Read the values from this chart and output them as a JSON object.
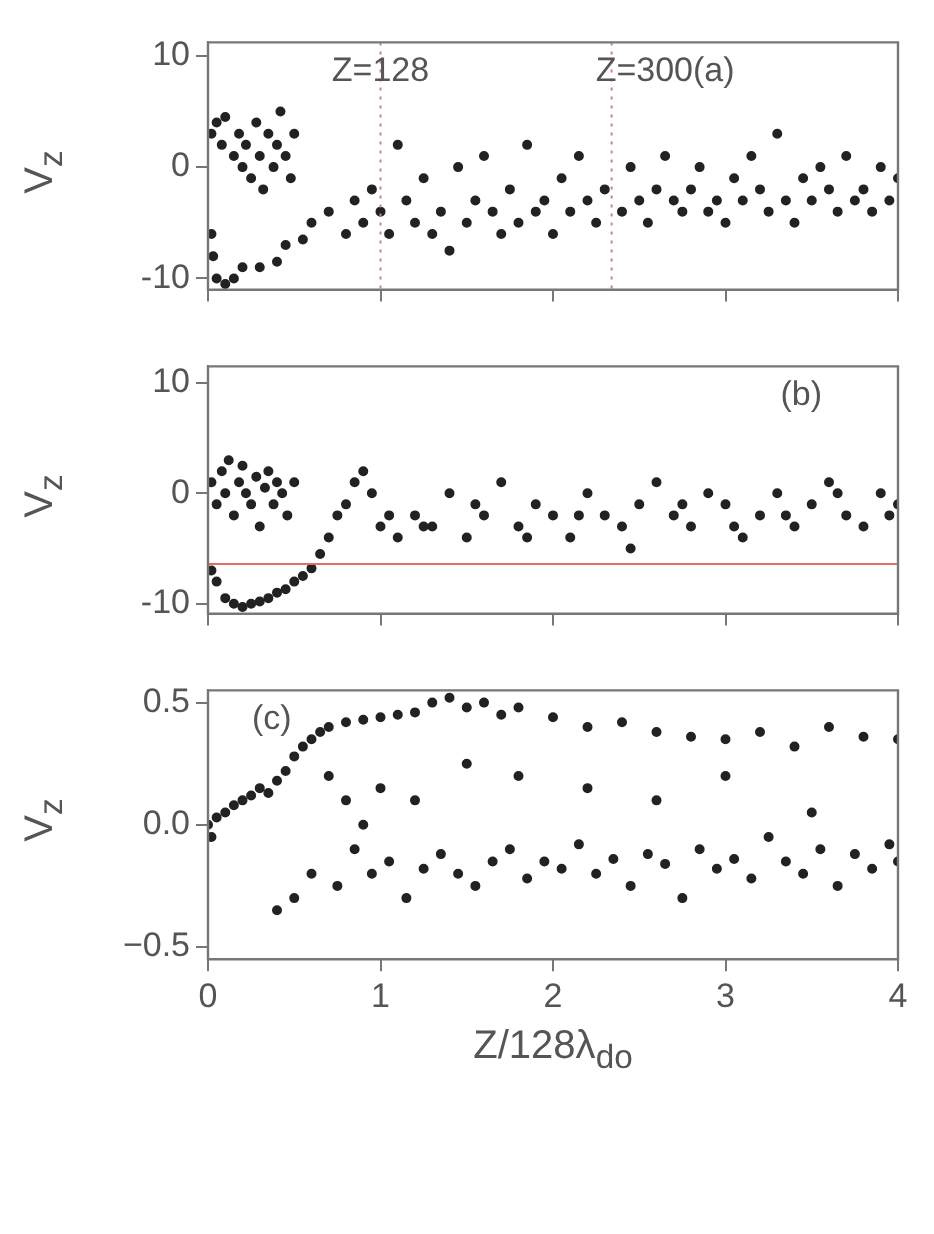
{
  "chart_data": [
    {
      "type": "scatter",
      "ylabel": "V$_{z}$",
      "tick_labels": "y",
      "grid": false,
      "marker": "circle",
      "color": "#222222",
      "xlim": [
        0,
        4
      ],
      "xticks": [
        0,
        1,
        2,
        3,
        4
      ],
      "ylim": [
        -11,
        11.2
      ],
      "yticks": [
        -10,
        0,
        10
      ],
      "annotations": [
        "Z=128",
        "Z=300(a)"
      ],
      "ref_lines": [
        {
          "axis": "x",
          "value": 1,
          "color": "#d08080",
          "line_style": "dotted"
        },
        {
          "axis": "x",
          "value": 2.34,
          "color": "#d08080",
          "line_style": "dotted"
        }
      ],
      "x": [
        0.02,
        0.05,
        0.08,
        0.1,
        0.15,
        0.18,
        0.2,
        0.22,
        0.25,
        0.28,
        0.3,
        0.32,
        0.35,
        0.38,
        0.4,
        0.42,
        0.45,
        0.48,
        0.5,
        0.02,
        0.03,
        0.05,
        0.1,
        0.15,
        0.2,
        0.3,
        0.4,
        0.45,
        0.55,
        0.6,
        0.7,
        0.8,
        0.85,
        0.9,
        0.95,
        1.0,
        1.05,
        1.1,
        1.15,
        1.2,
        1.25,
        1.3,
        1.35,
        1.4,
        1.45,
        1.5,
        1.55,
        1.6,
        1.65,
        1.7,
        1.75,
        1.8,
        1.85,
        1.9,
        1.95,
        2.0,
        2.05,
        2.1,
        2.15,
        2.2,
        2.25,
        2.3,
        2.4,
        2.45,
        2.5,
        2.55,
        2.6,
        2.65,
        2.7,
        2.75,
        2.8,
        2.85,
        2.9,
        2.95,
        3.0,
        3.05,
        3.1,
        3.15,
        3.2,
        3.25,
        3.3,
        3.35,
        3.4,
        3.45,
        3.5,
        3.55,
        3.6,
        3.65,
        3.7,
        3.75,
        3.8,
        3.85,
        3.9,
        3.95,
        4.0
      ],
      "values": [
        3,
        4,
        2,
        4.5,
        1,
        3,
        0,
        2,
        -1,
        4,
        1,
        -2,
        3,
        0,
        2,
        5,
        1,
        -1,
        3,
        -6,
        -8,
        -10,
        -10.5,
        -10,
        -9,
        -9,
        -8.5,
        -7,
        -6.5,
        -5,
        -4,
        -6,
        -3,
        -5,
        -2,
        -4,
        -6,
        2,
        -3,
        -5,
        -1,
        -6,
        -4,
        -7.5,
        0,
        -5,
        -3,
        1,
        -4,
        -6,
        -2,
        -5,
        2,
        -4,
        -3,
        -6,
        -1,
        -4,
        1,
        -3,
        -5,
        -2,
        -4,
        0,
        -3,
        -5,
        -2,
        1,
        -3,
        -4,
        -2,
        0,
        -4,
        -3,
        -5,
        -1,
        -3,
        1,
        -2,
        -4,
        3,
        -3,
        -5,
        -1,
        -3,
        0,
        -2,
        -4,
        1,
        -3,
        -2,
        -4,
        0,
        -3,
        -1
      ]
    },
    {
      "type": "scatter",
      "ylabel": "V$_{z}$",
      "tick_labels": "y",
      "grid": false,
      "marker": "circle",
      "color": "#222222",
      "xlim": [
        0,
        4
      ],
      "xticks": [
        0,
        1,
        2,
        3,
        4
      ],
      "ylim": [
        -10.9,
        11.5
      ],
      "yticks": [
        -10,
        0,
        10
      ],
      "annotations": [
        "(b)"
      ],
      "ref_lines": [
        {
          "axis": "y",
          "value": -6.4,
          "color": "#e07060",
          "line_style": "solid"
        }
      ],
      "x": [
        0.02,
        0.05,
        0.08,
        0.1,
        0.12,
        0.15,
        0.18,
        0.2,
        0.22,
        0.25,
        0.28,
        0.3,
        0.33,
        0.35,
        0.38,
        0.4,
        0.43,
        0.46,
        0.5,
        0.02,
        0.05,
        0.1,
        0.15,
        0.2,
        0.25,
        0.3,
        0.35,
        0.4,
        0.45,
        0.5,
        0.55,
        0.6,
        0.65,
        0.7,
        0.75,
        0.8,
        0.85,
        0.9,
        0.95,
        1.0,
        1.05,
        1.1,
        1.2,
        1.3,
        1.4,
        1.5,
        1.6,
        1.7,
        1.8,
        1.9,
        2.0,
        2.1,
        2.2,
        2.3,
        2.4,
        2.5,
        2.6,
        2.7,
        2.8,
        2.9,
        3.0,
        3.1,
        3.2,
        3.3,
        3.4,
        3.5,
        3.6,
        3.7,
        3.8,
        3.9,
        4.0,
        1.25,
        1.55,
        1.85,
        2.15,
        2.45,
        2.75,
        3.05,
        3.35,
        3.65,
        3.95
      ],
      "values": [
        1,
        -1,
        2,
        0,
        3,
        -2,
        1,
        2.5,
        0,
        -1,
        1.5,
        -3,
        0.5,
        2,
        -1,
        1,
        0,
        -2,
        1,
        -7,
        -8,
        -9.5,
        -10,
        -10.3,
        -10,
        -9.8,
        -9.5,
        -9,
        -8.7,
        -8,
        -7.5,
        -6.8,
        -5.5,
        -4,
        -2,
        -1,
        1,
        2,
        0,
        -3,
        -2,
        -4,
        -2,
        -3,
        0,
        -4,
        -2,
        1,
        -3,
        -1,
        -2,
        -4,
        0,
        -2,
        -3,
        -1,
        1,
        -2,
        -3,
        0,
        -1,
        -4,
        -2,
        0,
        -3,
        -1,
        1,
        -2,
        -3,
        0,
        -1,
        -3,
        -1,
        -4,
        -2,
        -5,
        -1,
        -3,
        -2,
        0,
        -2
      ]
    },
    {
      "type": "scatter",
      "ylabel": "V$_{z}$",
      "xlabel": "Z/128λ$_{do}$",
      "grid": false,
      "marker": "circle",
      "color": "#222222",
      "xlim": [
        0,
        4
      ],
      "xticks": [
        0,
        1,
        2,
        3,
        4
      ],
      "ylim": [
        -0.55,
        0.55
      ],
      "yticks": [
        {
          "value": -0.5,
          "label": "−0.5"
        },
        {
          "value": 0,
          "label": "0.0"
        },
        {
          "value": 0.5,
          "label": "0.5"
        }
      ],
      "annotations": [
        "(c)"
      ],
      "x": [
        0.0,
        0.02,
        0.05,
        0.1,
        0.15,
        0.2,
        0.25,
        0.3,
        0.35,
        0.4,
        0.45,
        0.5,
        0.55,
        0.6,
        0.65,
        0.7,
        0.8,
        0.9,
        1.0,
        1.1,
        1.2,
        1.3,
        1.4,
        1.5,
        1.6,
        1.7,
        1.8,
        2.0,
        2.2,
        2.4,
        2.6,
        2.8,
        3.0,
        3.2,
        3.4,
        3.6,
        3.8,
        4.0,
        0.7,
        0.8,
        0.9,
        1.0,
        1.2,
        1.5,
        1.8,
        2.2,
        2.6,
        3.0,
        3.5,
        0.5,
        0.6,
        0.4,
        0.75,
        0.85,
        0.95,
        1.05,
        1.15,
        1.25,
        1.35,
        1.45,
        1.55,
        1.65,
        1.75,
        1.85,
        1.95,
        2.05,
        2.15,
        2.25,
        2.35,
        2.45,
        2.55,
        2.65,
        2.75,
        2.85,
        2.95,
        3.05,
        3.15,
        3.25,
        3.35,
        3.45,
        3.55,
        3.65,
        3.75,
        3.85,
        3.95,
        4.0
      ],
      "values": [
        0.0,
        -0.05,
        0.03,
        0.05,
        0.08,
        0.1,
        0.12,
        0.15,
        0.13,
        0.18,
        0.22,
        0.28,
        0.32,
        0.35,
        0.38,
        0.4,
        0.42,
        0.43,
        0.44,
        0.45,
        0.46,
        0.5,
        0.52,
        0.48,
        0.5,
        0.45,
        0.48,
        0.44,
        0.4,
        0.42,
        0.38,
        0.36,
        0.35,
        0.38,
        0.32,
        0.4,
        0.36,
        0.35,
        0.2,
        0.1,
        0.0,
        0.15,
        0.1,
        0.25,
        0.2,
        0.15,
        0.1,
        0.2,
        0.05,
        -0.3,
        -0.2,
        -0.35,
        -0.25,
        -0.1,
        -0.2,
        -0.15,
        -0.3,
        -0.18,
        -0.12,
        -0.2,
        -0.25,
        -0.15,
        -0.1,
        -0.22,
        -0.15,
        -0.18,
        -0.08,
        -0.2,
        -0.14,
        -0.25,
        -0.12,
        -0.16,
        -0.3,
        -0.1,
        -0.18,
        -0.14,
        -0.22,
        -0.05,
        -0.15,
        -0.2,
        -0.1,
        -0.25,
        -0.12,
        -0.18,
        -0.08,
        -0.15
      ]
    }
  ]
}
